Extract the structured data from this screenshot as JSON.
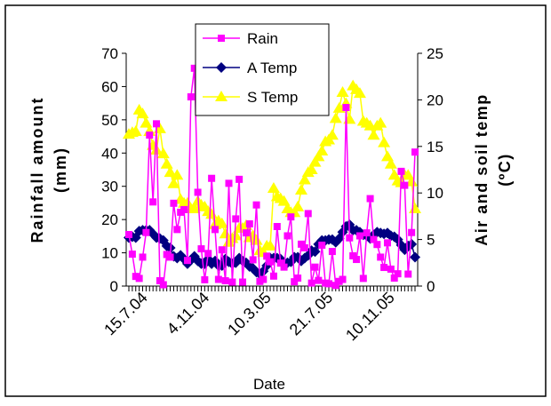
{
  "chart_data": {
    "type": "line",
    "xlabel": "Date",
    "ylabel": "Rainfall amount\n(mm)",
    "y2label": "Air and soil temp\n(ºC)",
    "x_tick_labels": [
      "15.7.04",
      "4.11.04",
      "10.3.05",
      "21.7.05",
      "10.11.05"
    ],
    "ylim": [
      0,
      70
    ],
    "y_ticks": [
      "0",
      "10",
      "20",
      "30",
      "40",
      "50",
      "60",
      "70"
    ],
    "y2lim": [
      0,
      25
    ],
    "y2_ticks": [
      "0",
      "5",
      "10",
      "15",
      "20",
      "25"
    ],
    "legend_position": "top-center",
    "n_points": 84,
    "series": [
      {
        "name": "Rain",
        "axis": "left",
        "color": "#ff00ff",
        "marker": "square",
        "values": [
          15.5,
          9.6,
          2.9,
          2.3,
          8.7,
          16.1,
          45.4,
          25.3,
          48.8,
          1.6,
          0.4,
          9.5,
          8.7,
          24.9,
          17.0,
          22.2,
          23.0,
          7.7,
          56.9,
          65.5,
          28.2,
          11.2,
          1.9,
          9.8,
          32.4,
          17.0,
          2.0,
          10.9,
          1.6,
          30.9,
          1.2,
          20.2,
          32.1,
          1.2,
          16.0,
          18.7,
          7.9,
          24.4,
          1.4,
          2.0,
          9.0,
          7.3,
          3.0,
          17.9,
          6.9,
          5.7,
          15.1,
          20.8,
          1.3,
          2.4,
          12.6,
          11.5,
          21.8,
          0.9,
          5.7,
          1.7,
          12.3,
          0.9,
          0.7,
          10.4,
          0.2,
          1.4,
          2.0,
          53.7,
          14.5,
          9.1,
          8.0,
          15.1,
          2.3,
          16.0,
          26.3,
          14.0,
          12.5,
          8.7,
          5.6,
          13.0,
          5.1,
          2.4,
          3.7,
          34.5,
          30.3,
          3.6,
          16.1,
          40.3
        ]
      },
      {
        "name": "A Temp",
        "axis": "right",
        "color": "#000080",
        "marker": "diamond",
        "values": [
          5.2,
          5.3,
          5.2,
          5.9,
          6.0,
          6.0,
          6.0,
          5.6,
          5.2,
          5.1,
          4.9,
          4.3,
          4.1,
          3.2,
          3.0,
          3.3,
          2.9,
          2.4,
          2.8,
          3.2,
          2.7,
          2.4,
          2.4,
          2.9,
          2.4,
          2.7,
          2.2,
          2.2,
          2.9,
          2.6,
          2.4,
          2.5,
          3.0,
          2.7,
          2.5,
          2.1,
          1.9,
          1.5,
          1.3,
          1.6,
          2.2,
          3.0,
          3.0,
          3.0,
          2.9,
          2.5,
          2.5,
          2.6,
          3.1,
          3.1,
          2.7,
          3.0,
          3.3,
          3.8,
          3.7,
          4.5,
          4.9,
          4.9,
          5.0,
          5.0,
          4.7,
          5.1,
          5.8,
          6.4,
          6.6,
          6.0,
          6.0,
          5.8,
          5.5,
          5.4,
          5.1,
          5.5,
          5.8,
          5.7,
          5.6,
          5.7,
          5.4,
          5.3,
          5.0,
          4.4,
          3.9,
          4.3,
          4.5,
          3.1
        ]
      },
      {
        "name": "S Temp",
        "axis": "right",
        "color": "#ffff00",
        "marker": "triangle",
        "values": [
          16.3,
          16.5,
          16.6,
          18.9,
          18.5,
          17.5,
          16.6,
          15.1,
          14.6,
          16.9,
          14.2,
          13.1,
          12.2,
          11.0,
          11.9,
          9.3,
          8.9,
          8.9,
          8.3,
          8.3,
          9.1,
          8.7,
          8.5,
          8.0,
          7.7,
          6.6,
          7.0,
          6.7,
          5.6,
          4.7,
          5.1,
          5.4,
          6.2,
          6.2,
          6.5,
          5.2,
          5.4,
          4.9,
          3.8,
          3.6,
          4.3,
          4.3,
          10.5,
          9.6,
          9.4,
          9.1,
          8.3,
          7.9,
          7.9,
          8.5,
          10.3,
          11.4,
          12.2,
          12.5,
          13.3,
          13.9,
          14.5,
          15.5,
          15.7,
          16.2,
          18.0,
          19.1,
          20.8,
          19.6,
          17.9,
          21.5,
          21.1,
          20.7,
          17.7,
          17.5,
          17.2,
          16.2,
          17.2,
          17.5,
          15.4,
          13.9,
          13.1,
          11.9,
          11.3,
          11.1,
          11.9,
          11.9,
          11.2,
          8.3
        ]
      }
    ]
  }
}
